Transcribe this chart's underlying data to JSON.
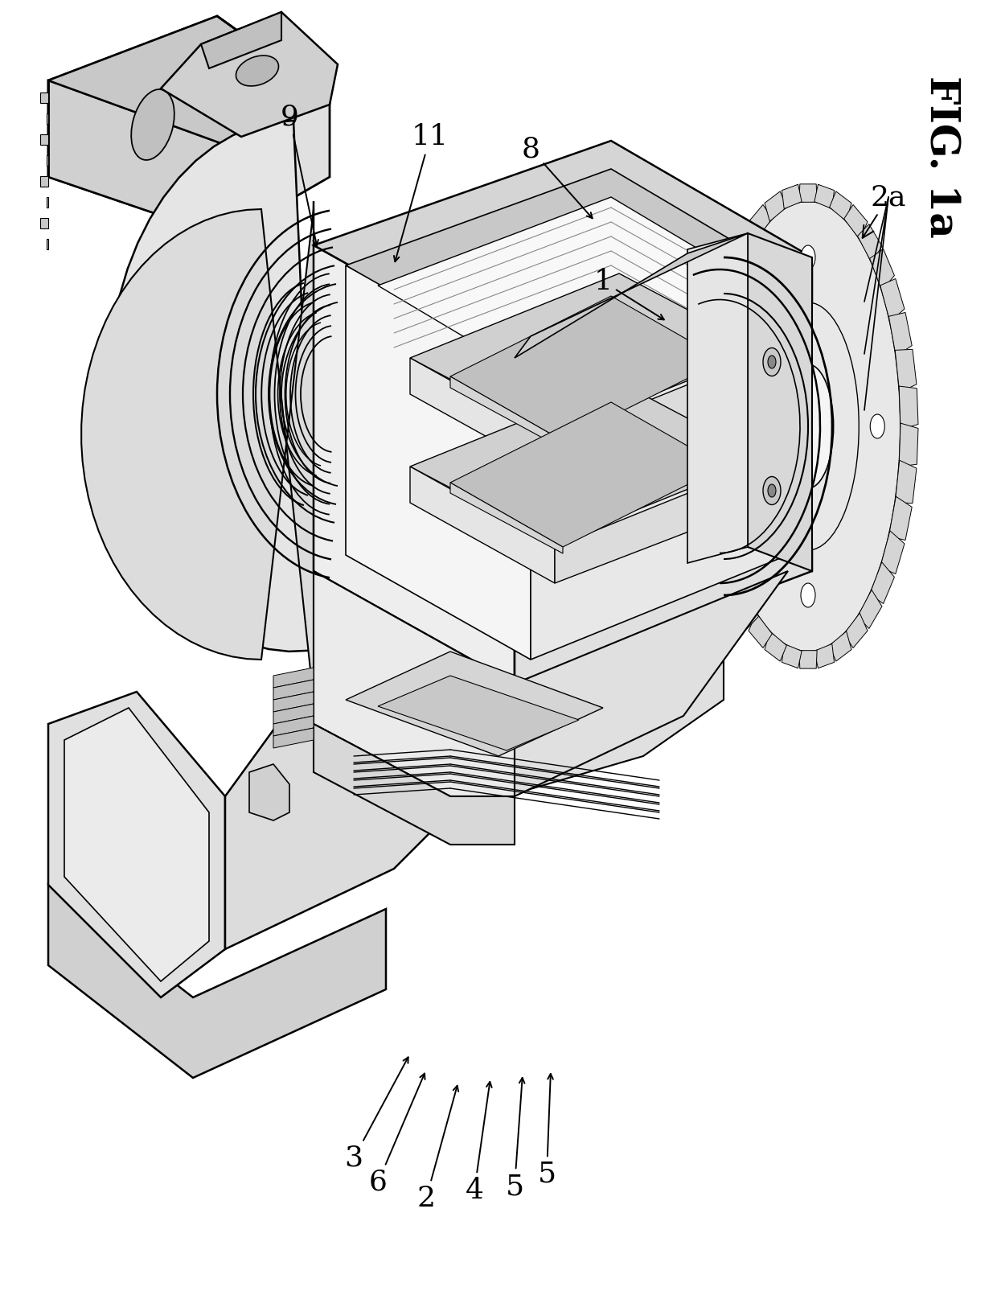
{
  "bg": "#ffffff",
  "fig_label": "FIG. 1a",
  "labels": [
    "1",
    "2",
    "2a",
    "3",
    "4",
    "5",
    "5",
    "6",
    "8",
    "9",
    "11"
  ],
  "line_color": "#000000",
  "face_light": "#f0f0f0",
  "face_mid": "#d8d8d8",
  "face_dark": "#c0c0c0",
  "face_darker": "#a8a8a8"
}
